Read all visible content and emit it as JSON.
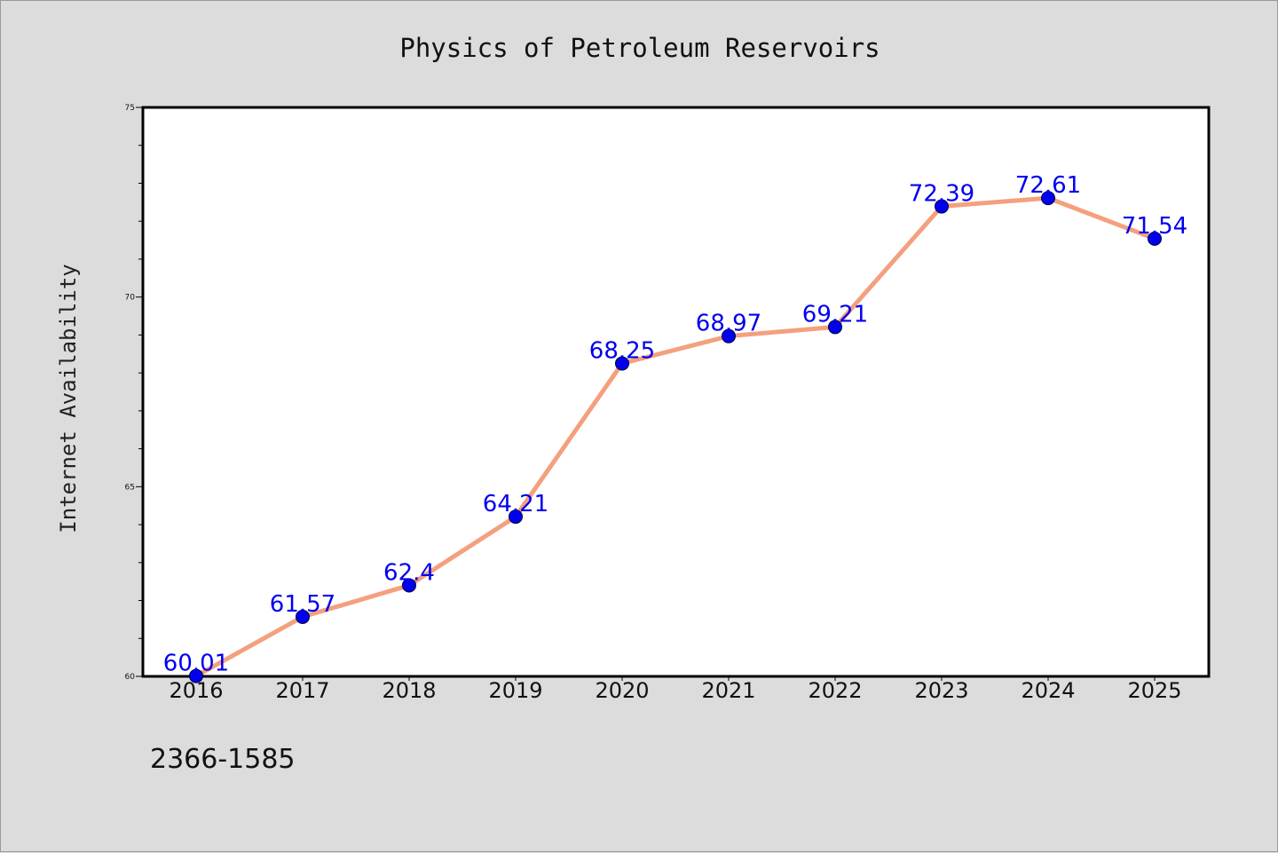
{
  "chart_data": {
    "type": "line",
    "title": "Physics of Petroleum Reservoirs",
    "xlabel": "",
    "ylabel": "Internet Availability",
    "categories": [
      "2016",
      "2017",
      "2018",
      "2019",
      "2020",
      "2021",
      "2022",
      "2023",
      "2024",
      "2025"
    ],
    "series": [
      {
        "values": [
          60.01,
          61.57,
          62.4,
          64.21,
          68.25,
          68.97,
          69.21,
          72.39,
          72.61,
          71.54
        ],
        "data_labels": [
          "60.01",
          "61.57",
          "62.4",
          "64.21",
          "68.25",
          "68.97",
          "69.21",
          "72.39",
          "72.61",
          "71.54"
        ],
        "line_color": "#f4a07e",
        "marker_color": "#0000ee",
        "label_color": "#0000ee"
      }
    ],
    "ylim": [
      60,
      75
    ],
    "yticks": [
      60,
      65,
      70,
      75
    ],
    "ytick_labels": [
      "60",
      "65",
      "70",
      "75"
    ],
    "grid": false,
    "legend": "none"
  },
  "footnote": "2366-1585"
}
